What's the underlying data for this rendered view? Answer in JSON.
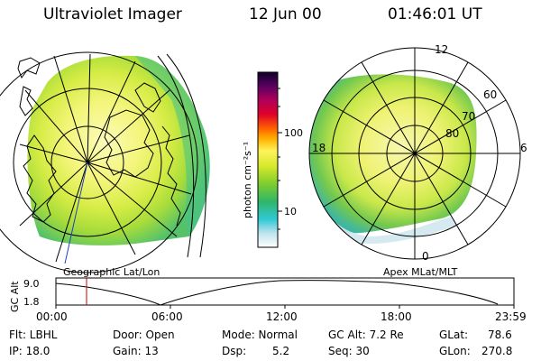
{
  "header": {
    "title": "Ultraviolet Imager",
    "date": "12 Jun 00",
    "time": "01:46:01 UT"
  },
  "colorbar": {
    "unit_label": "photon cm⁻²s⁻¹",
    "ticks": [
      "100",
      "10"
    ]
  },
  "left_panel": {
    "caption": "Geographic Lat/Lon"
  },
  "right_panel": {
    "caption": "Apex MLat/MLT",
    "mlt_labels": {
      "top": "12",
      "left": "18",
      "right": "6",
      "bottom": "0"
    },
    "mlat_labels": [
      "60",
      "70",
      "80"
    ]
  },
  "altitude_plot": {
    "ylabel": "GC Alt",
    "yticks": [
      "9.0",
      "1.8"
    ],
    "xticks": [
      "00:00",
      "06:00",
      "12:00",
      "18:00",
      "23:59"
    ]
  },
  "status": {
    "flt": "Flt: LBHL",
    "ip": "IP: 18.0",
    "door": "Door: Open",
    "gain": "Gain: 13",
    "mode": "Mode: Normal",
    "dsp_label": "Dsp:",
    "dsp_value": "5.2",
    "gcalt": "GC Alt: 7.2 Re",
    "seq": "Seq: 30",
    "glat_label": "GLat:",
    "glat_value": "78.6",
    "glon_label": "GLon:",
    "glon_value": "270.8"
  },
  "colors": {
    "cursor": "#cc0000"
  }
}
